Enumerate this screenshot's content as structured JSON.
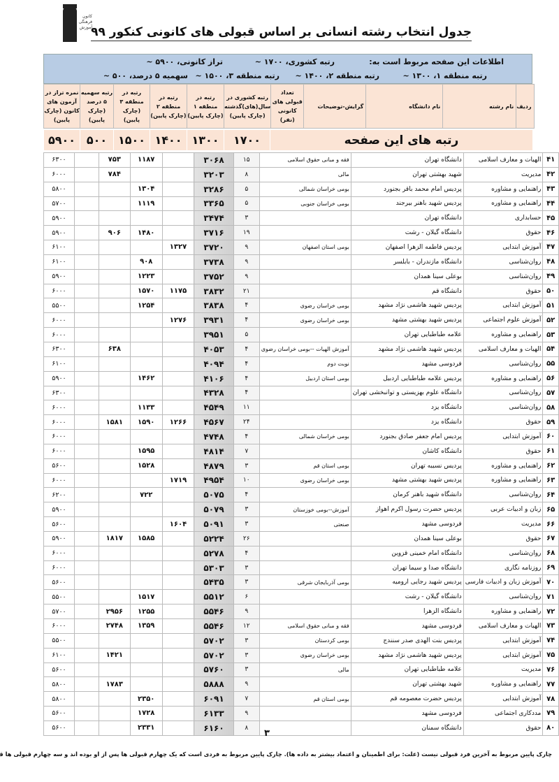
{
  "logo_text": "کانون فرهنگی آموزش",
  "title": "جدول انتخاب رشته انسانی بر اساس قبولی های کانونی کنکور ۹۹",
  "info": {
    "intro": "اطلاعات این صفحه مربوط است به:",
    "national": "رتبه کشوری، ۱۷۰۰ ~",
    "taraz": "تراز کانونی، ۵۹۰۰ ~",
    "region1": "رتبه منطقه ۱، ۱۳۰۰ ~",
    "region2": "رتبه منطقه ۲، ۱۴۰۰ ~",
    "region3": "رتبه منطقه ۳، ۱۵۰۰ ~",
    "quota5": "سهمیه ۵ درصد، ۵۰۰ ~"
  },
  "headers": [
    "ردیف",
    "نام رشته",
    "نام دانشگاه",
    "گرایش-توضیحات",
    "تعداد قبولی های کانونی (نفر)",
    "رتبه کشوری در سال(های)گذشته (چارک پایین)",
    "رتبه در منطقه ۱ (چارک پایین)",
    "رتبه در منطقه ۲ (چارک پایین)",
    "رتبه در منطقه ۳ (چارک پایین)",
    "رتبه سهمیه ۵ درصد (چارک پایین)",
    "نمره تراز در آزمون های کانون (چارک پایین)"
  ],
  "page_ranks": {
    "label": "رتبه های این صفحه",
    "national": "۱۷۰۰",
    "region1": "۱۳۰۰",
    "region2": "۱۴۰۰",
    "region3": "۱۵۰۰",
    "quota5": "۵۰۰",
    "taraz": "۵۹۰۰"
  },
  "rows": [
    [
      "۴۱",
      "الهیات و معارف اسلامی",
      "دانشگاه تهران",
      "فقه و مبانی حقوق اسلامی",
      "۱۵",
      "۳۰۶۸",
      "",
      "۱۱۸۷",
      "۷۵۳",
      "",
      "۶۳۰۰"
    ],
    [
      "۴۲",
      "مدیریت",
      "شهید بهشتی تهران",
      "مالی",
      "۸",
      "۳۲۰۳",
      "",
      "",
      "۷۸۴",
      "",
      "۶۰۰۰"
    ],
    [
      "۴۳",
      "راهنمایی و مشاوره",
      "پردیس امام محمد باقر بجنورد",
      "بومی خراسان شمالی",
      "۵",
      "۳۲۸۶",
      "",
      "۱۳۰۴",
      "",
      "",
      "۵۸۰۰"
    ],
    [
      "۴۴",
      "راهنمایی و مشاوره",
      "پردیس شهید باهنر بیرجند",
      "بومی خراسان جنوبی",
      "۵",
      "۳۳۶۵",
      "",
      "۱۱۱۹",
      "",
      "",
      "۵۷۰۰"
    ],
    [
      "۴۵",
      "حسابداری",
      "دانشگاه تهران",
      "",
      "۳",
      "۳۴۷۴",
      "",
      "",
      "",
      "",
      "۵۹۰۰"
    ],
    [
      "۴۶",
      "حقوق",
      "دانشگاه گیلان - رشت",
      "",
      "۱۹",
      "۳۷۱۶",
      "",
      "۱۴۸۰",
      "۹۰۶",
      "",
      "۵۹۰۰"
    ],
    [
      "۴۷",
      "آموزش ابتدایی",
      "پردیس فاطمه الزهرا اصفهان",
      "بومی استان اصفهان",
      "۹",
      "۳۷۲۰",
      "۱۳۲۷",
      "",
      "",
      "",
      "۶۱۰۰"
    ],
    [
      "۴۸",
      "روان‌شناسی",
      "دانشگاه مازندران - بابلسر",
      "",
      "۹",
      "۳۷۳۸",
      "",
      "۹۰۸",
      "",
      "",
      "۶۱۰۰"
    ],
    [
      "۴۹",
      "روان‌شناسی",
      "بوعلی سینا همدان",
      "",
      "۹",
      "۳۷۵۲",
      "",
      "۱۲۲۳",
      "",
      "",
      "۵۹۰۰"
    ],
    [
      "۵۰",
      "حقوق",
      "دانشگاه قم",
      "",
      "۲۱",
      "۳۸۳۲",
      "۱۱۷۵",
      "۱۵۷۰",
      "",
      "",
      "۶۰۰۰"
    ],
    [
      "۵۱",
      "آموزش ابتدایی",
      "پردیس شهید هاشمی نژاد مشهد",
      "بومی خراسان رضوی",
      "۴",
      "۳۸۳۸",
      "",
      "۱۲۵۴",
      "",
      "",
      "۵۵۰۰"
    ],
    [
      "۵۲",
      "آموزش علوم اجتماعی",
      "پردیس شهید بهشتی مشهد",
      "بومی خراسان رضوی",
      "۴",
      "۳۹۳۱",
      "۱۲۷۶",
      "",
      "",
      "",
      "۶۰۰۰"
    ],
    [
      "۵۳",
      "راهنمایی و مشاوره",
      "علامه طباطبایی تهران",
      "",
      "۵",
      "۳۹۵۱",
      "",
      "",
      "",
      "",
      "۶۰۰۰"
    ],
    [
      "۵۴",
      "الهیات و معارف اسلامی",
      "پردیس شهید هاشمی نژاد مشهد",
      "آموزش الهیات --بومی خراسان رضوی",
      "۴",
      "۴۰۵۳",
      "",
      "",
      "۶۳۸",
      "",
      "۶۳۰۰"
    ],
    [
      "۵۵",
      "روان‌شناسی",
      "فردوسی مشهد",
      "نوبت دوم",
      "۴",
      "۴۰۹۴",
      "",
      "",
      "",
      "",
      "۶۱۰۰"
    ],
    [
      "۵۶",
      "راهنمایی و مشاوره",
      "پردیس علامه طباطبایی اردبیل",
      "بومی استان اردبیل",
      "۴",
      "۴۱۰۶",
      "",
      "۱۴۶۲",
      "",
      "",
      "۵۹۰۰"
    ],
    [
      "۵۷",
      "روان‌شناسی",
      "دانشگاه علوم بهزیستی و توانبخشی تهران",
      "",
      "۴",
      "۴۳۲۸",
      "",
      "",
      "",
      "",
      "۶۳۰۰"
    ],
    [
      "۵۸",
      "روان‌شناسی",
      "دانشگاه یزد",
      "",
      "۱۱",
      "۴۵۴۹",
      "",
      "۱۱۳۳",
      "",
      "",
      "۶۰۰۰"
    ],
    [
      "۵۹",
      "حقوق",
      "دانشگاه یزد",
      "",
      "۲۴",
      "۴۵۶۷",
      "۱۲۶۶",
      "۱۵۹۰",
      "۱۵۸۱",
      "",
      "۶۰۰۰"
    ],
    [
      "۶۰",
      "آموزش ابتدایی",
      "پردیس امام جعفر صادق بجنورد",
      "بومی خراسان شمالی",
      "۴",
      "۴۷۴۸",
      "",
      "",
      "",
      "",
      "۶۰۰۰"
    ],
    [
      "۶۱",
      "حقوق",
      "دانشگاه کاشان",
      "",
      "۷",
      "۴۸۱۴",
      "",
      "۱۵۹۵",
      "",
      "",
      "۶۰۰۰"
    ],
    [
      "۶۲",
      "راهنمایی و مشاوره",
      "پردیس نسیبه تهران",
      "بومی استان قم",
      "۳",
      "۴۸۷۹",
      "",
      "۱۵۲۸",
      "",
      "",
      "۵۶۰۰"
    ],
    [
      "۶۳",
      "راهنمایی و مشاوره",
      "پردیس شهید بهشتی مشهد",
      "بومی خراسان رضوی",
      "۱۰",
      "۴۹۵۴",
      "۱۷۱۹",
      "",
      "",
      "",
      "۶۰۰۰"
    ],
    [
      "۶۴",
      "روان‌شناسی",
      "دانشگاه شهید باهنر کرمان",
      "",
      "۴",
      "۵۰۷۵",
      "",
      "۷۲۲",
      "",
      "",
      "۶۲۰۰"
    ],
    [
      "۶۵",
      "زبان و ادبیات عربی",
      "پردیس حضرت رسول اکرم اهواز",
      "آموزش--بومی خوزستان",
      "۳",
      "۵۰۷۹",
      "",
      "",
      "",
      "",
      "۵۹۰۰"
    ],
    [
      "۶۶",
      "مدیریت",
      "فردوسی مشهد",
      "صنعتی",
      "۳",
      "۵۰۹۱",
      "۱۶۰۴",
      "",
      "",
      "",
      "۵۶۰۰"
    ],
    [
      "۶۷",
      "حقوق",
      "بوعلی سینا همدان",
      "",
      "۲۶",
      "۵۲۲۴",
      "",
      "۱۵۸۵",
      "۱۸۱۷",
      "",
      "۵۹۰۰"
    ],
    [
      "۶۸",
      "روان‌شناسی",
      "دانشگاه امام خمینی قزوین",
      "",
      "۴",
      "۵۲۷۸",
      "",
      "",
      "",
      "",
      "۶۰۰۰"
    ],
    [
      "۶۹",
      "روزنامه نگاری",
      "دانشگاه صدا و سیما تهران",
      "",
      "۳",
      "۵۳۰۳",
      "",
      "",
      "",
      "",
      "۶۰۰۰"
    ],
    [
      "۷۰",
      "آموزش زبان و ادبیات فارسی",
      "پردیس شهید رجایی ارومیه",
      "بومی آذربایجان شرقی",
      "۳",
      "۵۴۳۵",
      "",
      "",
      "",
      "",
      "۵۶۰۰"
    ],
    [
      "۷۱",
      "روان‌شناسی",
      "دانشگاه گیلان - رشت",
      "",
      "۶",
      "۵۵۱۲",
      "",
      "۱۵۱۷",
      "",
      "",
      "۵۵۰۰"
    ],
    [
      "۷۲",
      "راهنمایی و مشاوره",
      "دانشگاه الزهرا",
      "",
      "۹",
      "۵۵۴۶",
      "",
      "۱۲۵۵",
      "۲۹۵۶",
      "",
      "۵۷۰۰"
    ],
    [
      "۷۳",
      "الهیات و معارف اسلامی",
      "فردوسی مشهد",
      "فقه و مبانی حقوق اسلامی",
      "۱۲",
      "۵۵۴۶",
      "",
      "۱۳۵۹",
      "۲۷۴۸",
      "",
      "۶۰۰۰"
    ],
    [
      "۷۴",
      "آموزش ابتدایی",
      "پردیس بنت الهدی صدر سنندج",
      "بومی کردستان",
      "۳",
      "۵۷۰۲",
      "",
      "",
      "",
      "",
      "۵۵۰۰"
    ],
    [
      "۷۵",
      "آموزش ابتدایی",
      "پردیس شهید هاشمی نژاد مشهد",
      "بومی خراسان رضوی",
      "۳",
      "۵۷۰۲",
      "",
      "",
      "۱۴۲۱",
      "",
      "۶۱۰۰"
    ],
    [
      "۷۶",
      "مدیریت",
      "علامه طباطبایی تهران",
      "مالی",
      "۳",
      "۵۷۶۰",
      "",
      "",
      "",
      "",
      "۵۶۰۰"
    ],
    [
      "۷۷",
      "راهنمایی و مشاوره",
      "شهید بهشتی تهران",
      "",
      "۹",
      "۵۸۸۸",
      "",
      "",
      "۱۷۸۳",
      "",
      "۵۸۰۰"
    ],
    [
      "۷۸",
      "آموزش ابتدایی",
      "پردیس حضرت معصومه قم",
      "بومی استان قم",
      "۷",
      "۶۰۹۱",
      "",
      "۲۳۵۰",
      "",
      "",
      "۵۸۰۰"
    ],
    [
      "۷۹",
      "مددکاری اجتماعی",
      "فردوسی مشهد",
      "",
      "۹",
      "۶۱۳۳",
      "",
      "۱۷۲۸",
      "",
      "",
      "۵۶۰۰"
    ],
    [
      "۸۰",
      "حقوق",
      "دانشگاه سمنان",
      "",
      "۸",
      "۶۱۶۰",
      "",
      "۲۳۳۱",
      "",
      "",
      "۵۶۰۰"
    ]
  ],
  "page_number": "۳",
  "footnote": "چارک پایین مربوط به آخرین فرد قبولی نیست (علت: برای اطمینان و اعتماد بیشتر به داده ها). چارک پایین مربوط به فردی است که یک چهارم قبولی ها پس از او بوده اند و سه چهارم قبولی ها قبل از او ."
}
